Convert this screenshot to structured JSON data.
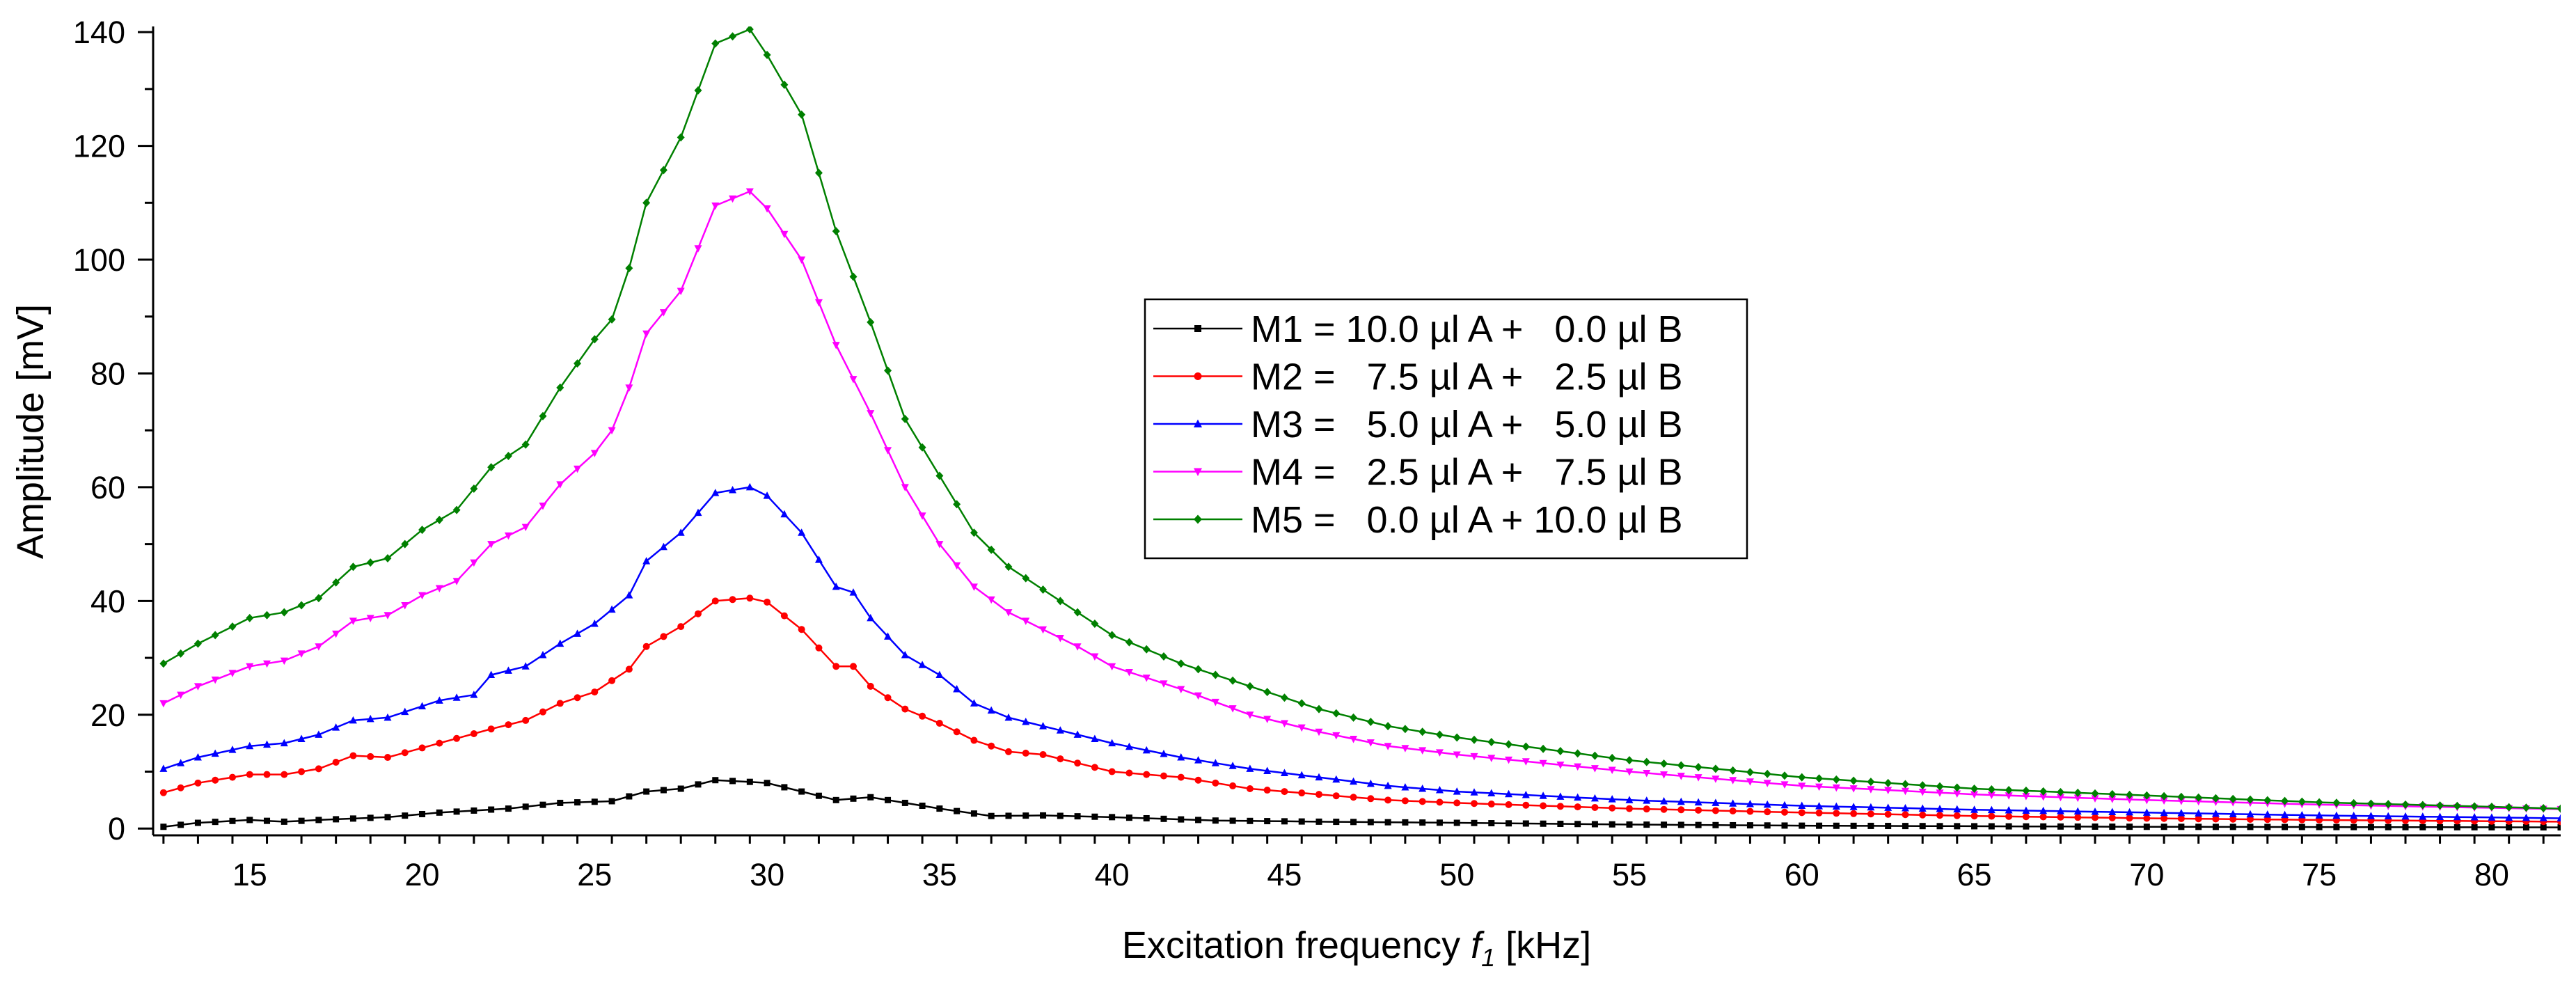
{
  "chart_data": {
    "type": "line",
    "title": "",
    "xlabel_prefix": "Excitation frequency ",
    "xlabel_var": "f",
    "xlabel_sub": "1",
    "xlabel_suffix": " [kHz]",
    "ylabel": "Amplitude [mV]",
    "xlim": [
      12.2,
      82.0
    ],
    "ylim": [
      -1.2,
      141.0
    ],
    "x_major_ticks": [
      15,
      20,
      25,
      30,
      35,
      40,
      45,
      50,
      55,
      60,
      65,
      70,
      75,
      80
    ],
    "x_tick_labels": [
      "15",
      "20",
      "25",
      "30",
      "35",
      "40",
      "45",
      "50",
      "55",
      "60",
      "65",
      "70",
      "75",
      "80"
    ],
    "y_major_ticks": [
      0,
      20,
      40,
      60,
      80,
      100,
      120,
      140
    ],
    "y_tick_labels": [
      "0",
      "20",
      "40",
      "60",
      "80",
      "100",
      "120",
      "140"
    ],
    "legend_position": "center-right",
    "grid": false,
    "x_range": [
      12.5,
      82.0
    ],
    "x_step": 0.5,
    "series": [
      {
        "name": "M1 = 10.0 µl A +   0.0 µl B",
        "color": "#000000",
        "marker": "square",
        "anchors": [
          [
            12.5,
            0.3
          ],
          [
            13.5,
            1.0
          ],
          [
            15,
            1.5
          ],
          [
            16,
            1.2
          ],
          [
            17,
            1.5
          ],
          [
            19,
            2.0
          ],
          [
            20.5,
            2.8
          ],
          [
            22.5,
            3.5
          ],
          [
            24,
            4.5
          ],
          [
            25.5,
            4.8
          ],
          [
            26.5,
            6.5
          ],
          [
            27.5,
            7.0
          ],
          [
            28.5,
            8.5
          ],
          [
            29.5,
            8.2
          ],
          [
            30,
            8.0
          ],
          [
            31,
            6.5
          ],
          [
            32,
            5.0
          ],
          [
            33,
            5.5
          ],
          [
            35,
            3.5
          ],
          [
            36.5,
            2.2
          ],
          [
            38,
            2.3
          ],
          [
            40,
            2.0
          ],
          [
            43,
            1.4
          ],
          [
            46,
            1.2
          ],
          [
            50,
            1.0
          ],
          [
            55,
            0.7
          ],
          [
            60,
            0.5
          ],
          [
            70,
            0.3
          ],
          [
            82,
            0.2
          ]
        ]
      },
      {
        "name": "M2 =   7.5 µl A +   2.5 µl B",
        "color": "#ff0000",
        "marker": "circle",
        "anchors": [
          [
            12.5,
            6.3
          ],
          [
            13.5,
            8.0
          ],
          [
            15,
            9.5
          ],
          [
            16,
            9.5
          ],
          [
            17,
            10.5
          ],
          [
            18,
            12.8
          ],
          [
            19,
            12.5
          ],
          [
            20.5,
            15.0
          ],
          [
            22,
            17.5
          ],
          [
            23,
            19.0
          ],
          [
            24,
            22.0
          ],
          [
            25,
            24.0
          ],
          [
            26,
            28.0
          ],
          [
            26.5,
            32.0
          ],
          [
            27.5,
            35.5
          ],
          [
            28.5,
            40.0
          ],
          [
            29.5,
            40.5
          ],
          [
            30,
            39.8
          ],
          [
            31,
            35.0
          ],
          [
            32,
            28.5
          ],
          [
            32.5,
            28.5
          ],
          [
            33,
            25.0
          ],
          [
            34,
            21.0
          ],
          [
            35,
            18.5
          ],
          [
            36,
            15.5
          ],
          [
            37,
            13.5
          ],
          [
            38,
            13.0
          ],
          [
            39,
            11.5
          ],
          [
            40,
            10.0
          ],
          [
            42,
            9.0
          ],
          [
            44,
            7.0
          ],
          [
            46,
            6.0
          ],
          [
            48,
            5.0
          ],
          [
            50,
            4.5
          ],
          [
            55,
            3.5
          ],
          [
            60,
            2.8
          ],
          [
            65,
            2.2
          ],
          [
            70,
            1.8
          ],
          [
            75,
            1.5
          ],
          [
            82,
            1.2
          ]
        ]
      },
      {
        "name": "M3 =   5.0 µl A +   5.0 µl B",
        "color": "#0000ff",
        "marker": "triangle-up",
        "anchors": [
          [
            12.5,
            10.5
          ],
          [
            13.5,
            12.5
          ],
          [
            15,
            14.5
          ],
          [
            16,
            15.0
          ],
          [
            17,
            16.5
          ],
          [
            18,
            19.0
          ],
          [
            19,
            19.5
          ],
          [
            20.5,
            22.5
          ],
          [
            21.5,
            23.5
          ],
          [
            22,
            27.0
          ],
          [
            23,
            28.5
          ],
          [
            24,
            32.5
          ],
          [
            25,
            36.0
          ],
          [
            26,
            41.0
          ],
          [
            26.5,
            47.0
          ],
          [
            27.5,
            52.0
          ],
          [
            28.5,
            59.0
          ],
          [
            29.5,
            60.0
          ],
          [
            30,
            58.5
          ],
          [
            31,
            52.0
          ],
          [
            32,
            42.5
          ],
          [
            32.5,
            41.5
          ],
          [
            33,
            37.0
          ],
          [
            34,
            30.5
          ],
          [
            35,
            27.0
          ],
          [
            36,
            22.0
          ],
          [
            37,
            19.5
          ],
          [
            38,
            18.0
          ],
          [
            39,
            16.5
          ],
          [
            40,
            15.0
          ],
          [
            42,
            12.5
          ],
          [
            44,
            10.5
          ],
          [
            46,
            9.0
          ],
          [
            48,
            7.5
          ],
          [
            50,
            6.5
          ],
          [
            55,
            5.0
          ],
          [
            60,
            4.0
          ],
          [
            65,
            3.3
          ],
          [
            70,
            2.8
          ],
          [
            75,
            2.3
          ],
          [
            82,
            1.8
          ]
        ]
      },
      {
        "name": "M4 =   2.5 µl A +   7.5 µl B",
        "color": "#ff00ff",
        "marker": "triangle-down",
        "anchors": [
          [
            12.5,
            22.0
          ],
          [
            13.5,
            25.0
          ],
          [
            15,
            28.5
          ],
          [
            16,
            29.5
          ],
          [
            17,
            32.0
          ],
          [
            18,
            36.5
          ],
          [
            19,
            37.5
          ],
          [
            20,
            41.0
          ],
          [
            21,
            43.5
          ],
          [
            22,
            50.0
          ],
          [
            23,
            53.0
          ],
          [
            24,
            60.5
          ],
          [
            25,
            66.0
          ],
          [
            25.5,
            70.0
          ],
          [
            26,
            77.5
          ],
          [
            26.5,
            87.0
          ],
          [
            27.5,
            94.5
          ],
          [
            28.5,
            109.5
          ],
          [
            29.5,
            112.0
          ],
          [
            30,
            109.0
          ],
          [
            31,
            100.0
          ],
          [
            32,
            85.0
          ],
          [
            33,
            73.0
          ],
          [
            34,
            60.0
          ],
          [
            35,
            50.0
          ],
          [
            36,
            42.5
          ],
          [
            37,
            38.0
          ],
          [
            38,
            35.0
          ],
          [
            39,
            32.0
          ],
          [
            40,
            28.5
          ],
          [
            42,
            24.5
          ],
          [
            44,
            20.0
          ],
          [
            46,
            17.0
          ],
          [
            48,
            14.5
          ],
          [
            50,
            13.0
          ],
          [
            55,
            10.0
          ],
          [
            60,
            7.5
          ],
          [
            65,
            6.0
          ],
          [
            70,
            5.0
          ],
          [
            75,
            4.2
          ],
          [
            82,
            3.4
          ]
        ]
      },
      {
        "name": "M5 =   0.0 µl A + 10.0 µl B",
        "color": "#008000",
        "marker": "diamond",
        "anchors": [
          [
            12.5,
            29.0
          ],
          [
            13.5,
            32.5
          ],
          [
            15,
            37.0
          ],
          [
            16,
            38.0
          ],
          [
            17,
            40.5
          ],
          [
            18,
            46.0
          ],
          [
            19,
            47.5
          ],
          [
            20,
            52.5
          ],
          [
            21,
            56.0
          ],
          [
            22,
            63.5
          ],
          [
            23,
            67.5
          ],
          [
            24,
            77.5
          ],
          [
            25,
            86.0
          ],
          [
            25.5,
            89.5
          ],
          [
            26,
            98.5
          ],
          [
            26.5,
            110.0
          ],
          [
            27.5,
            121.5
          ],
          [
            28.5,
            138.0
          ],
          [
            29.5,
            140.5
          ],
          [
            30,
            136.0
          ],
          [
            31,
            125.5
          ],
          [
            32,
            105.0
          ],
          [
            33,
            89.0
          ],
          [
            34,
            72.0
          ],
          [
            35,
            62.0
          ],
          [
            36,
            52.0
          ],
          [
            37,
            46.0
          ],
          [
            38,
            42.0
          ],
          [
            39,
            38.0
          ],
          [
            40,
            34.0
          ],
          [
            42,
            29.0
          ],
          [
            44,
            25.0
          ],
          [
            46,
            21.0
          ],
          [
            48,
            18.0
          ],
          [
            50,
            16.0
          ],
          [
            55,
            12.0
          ],
          [
            60,
            9.0
          ],
          [
            65,
            7.0
          ],
          [
            70,
            5.8
          ],
          [
            75,
            4.6
          ],
          [
            82,
            3.5
          ]
        ]
      }
    ]
  }
}
